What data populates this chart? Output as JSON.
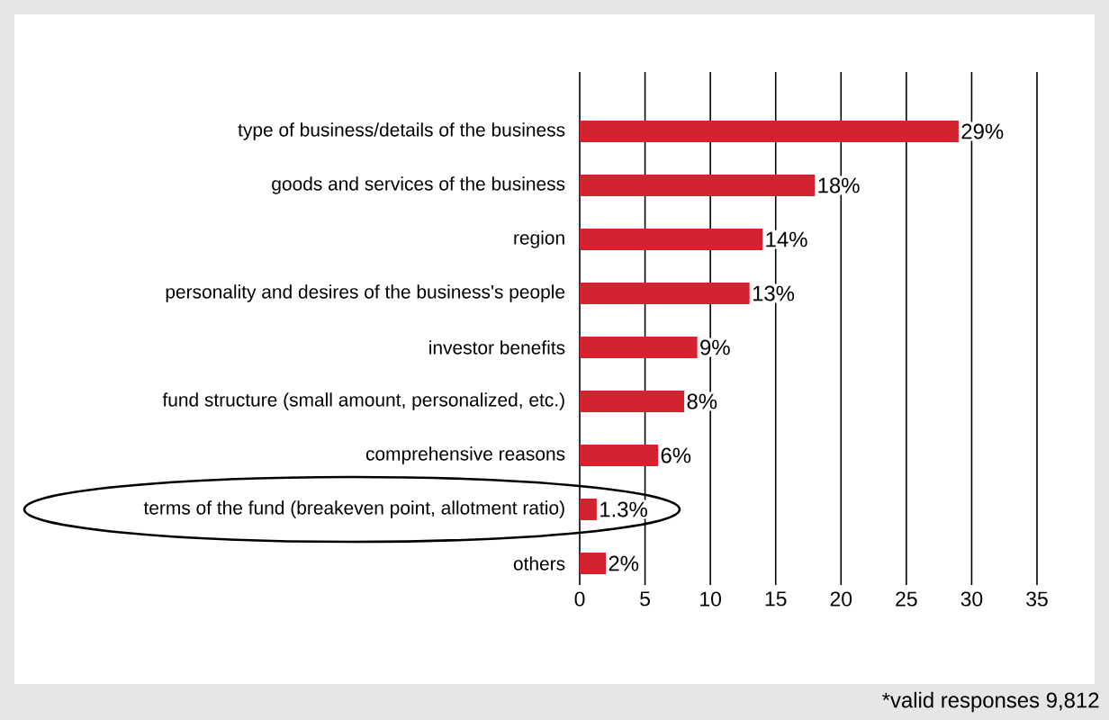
{
  "chart_data": {
    "type": "bar",
    "orientation": "horizontal",
    "categories": [
      "type of business/details of the business",
      "goods and services of the business",
      "region",
      "personality and desires of the business's people",
      "investor benefits",
      "fund structure (small amount, personalized, etc.)",
      "comprehensive reasons",
      "terms of the fund (breakeven point, allotment ratio)",
      "others"
    ],
    "values": [
      29,
      18,
      14,
      13,
      9,
      8,
      6,
      1.3,
      2
    ],
    "value_labels": [
      "29%",
      "18%",
      "14%",
      "13%",
      "9%",
      "8%",
      "6%",
      "1.3%",
      "2%"
    ],
    "color": "#d2232e",
    "xlim": [
      0,
      35
    ],
    "xticks": [
      0,
      5,
      10,
      15,
      20,
      25,
      30,
      35
    ],
    "grid": "x",
    "annotations": [
      "*valid responses 9,812"
    ]
  }
}
